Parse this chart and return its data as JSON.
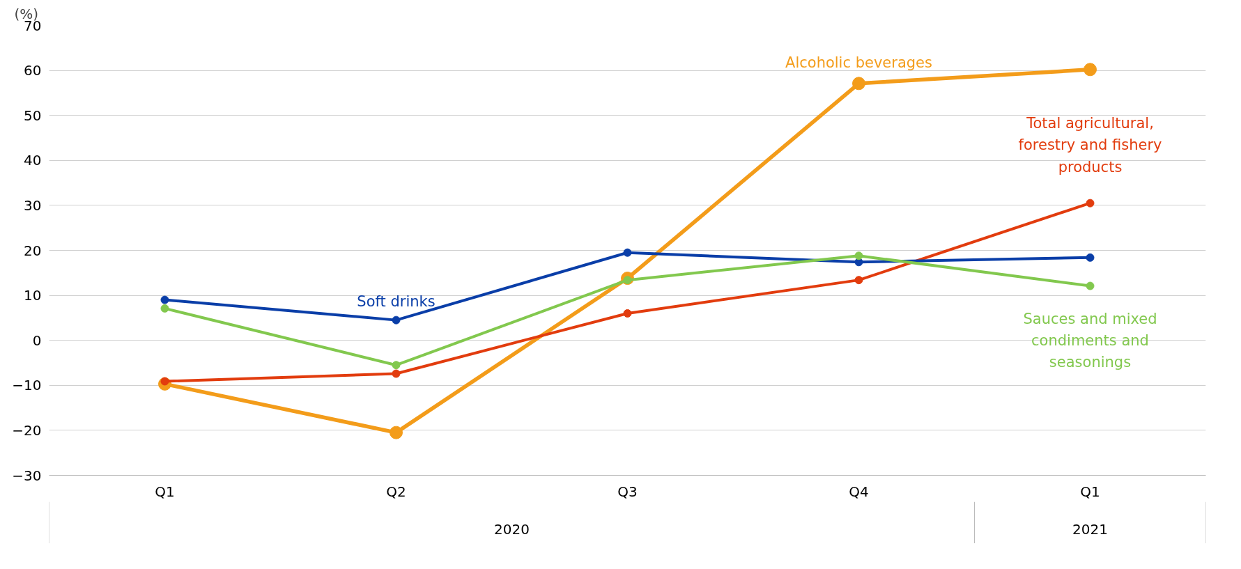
{
  "chart_data": {
    "type": "line",
    "ylabel": "(%)",
    "categories": [
      "Q1",
      "Q2",
      "Q3",
      "Q4",
      "Q1"
    ],
    "series": [
      {
        "name": "Alcoholic beverages",
        "color": "#f39c1a",
        "values": [
          -9.7,
          -20.5,
          13.8,
          57.1,
          60.2
        ]
      },
      {
        "name": "Total agricultural, forestry and fishery products",
        "color": "#e23c0e",
        "values": [
          -9.1,
          -7.4,
          6.0,
          13.4,
          30.5
        ]
      },
      {
        "name": "Soft drinks",
        "color": "#0a3ea8",
        "values": [
          9.0,
          4.5,
          19.5,
          17.4,
          18.4
        ]
      },
      {
        "name": "Sauces and mixed condiments and seasonings",
        "color": "#82c84e",
        "values": [
          7.1,
          -5.5,
          13.4,
          18.8,
          12.1
        ]
      }
    ],
    "ylim": [
      -30,
      70
    ],
    "yticks": [
      -30,
      -20,
      -10,
      0,
      10,
      20,
      30,
      40,
      50,
      60,
      70
    ],
    "grid": "y",
    "marker": "circle",
    "line_style": "solid",
    "annotations": [
      "2020",
      "2021"
    ]
  }
}
